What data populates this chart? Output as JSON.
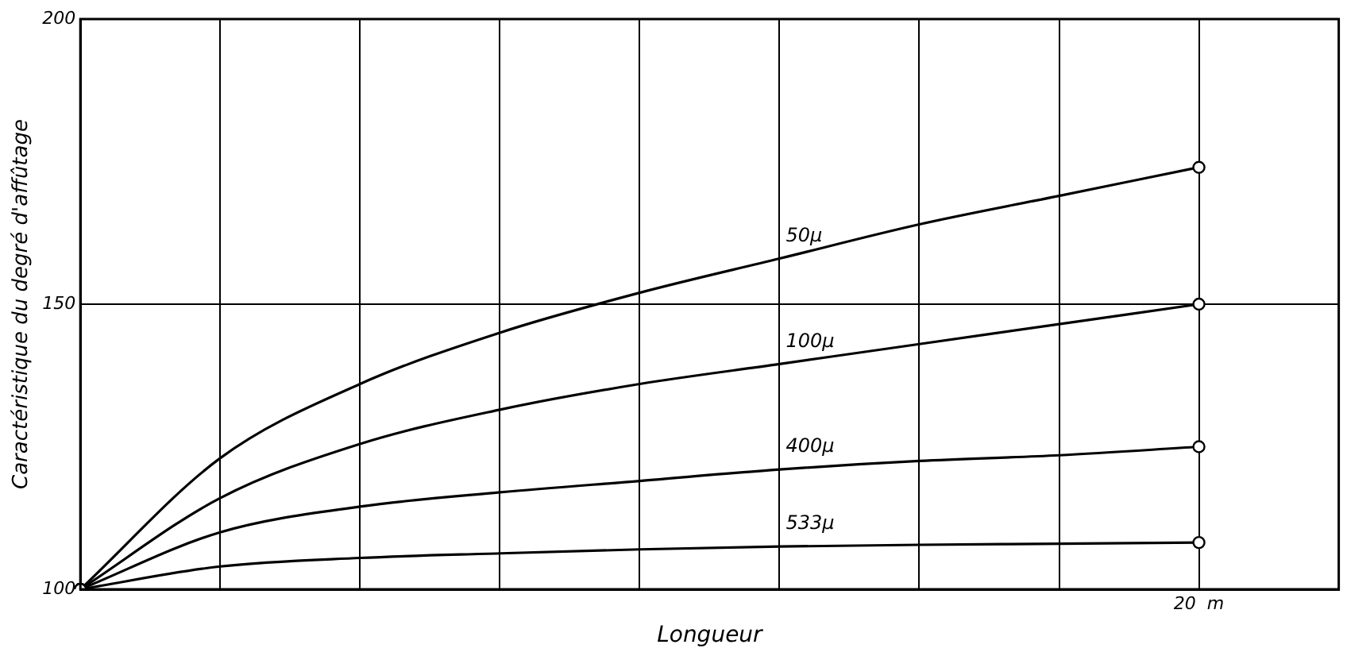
{
  "chart_data": {
    "type": "line",
    "xlabel": "Longueur",
    "ylabel": "Caractéristique du degré d'affûtage",
    "categories": [
      null,
      null,
      null,
      null,
      null,
      null,
      null,
      null,
      "20  m",
      null
    ],
    "series": [
      {
        "name": "50μ",
        "color": "#000000",
        "values": [
          100,
          123,
          136,
          145,
          152,
          158,
          164,
          169,
          174,
          null
        ]
      },
      {
        "name": "100μ",
        "color": "#000000",
        "values": [
          100,
          116,
          125.5,
          131.5,
          136,
          139.5,
          143,
          146.5,
          150,
          null
        ]
      },
      {
        "name": "400μ",
        "color": "#000000",
        "values": [
          100,
          110,
          114.5,
          117,
          119,
          121,
          122.5,
          123.5,
          125,
          null
        ]
      },
      {
        "name": "533μ",
        "color": "#000000",
        "values": [
          100,
          104,
          105.5,
          106.3,
          107,
          107.5,
          107.8,
          108,
          108.2,
          null
        ]
      }
    ],
    "ylim": [
      100,
      200
    ],
    "yticks": [
      100,
      150,
      200
    ],
    "grid": true,
    "legend": false,
    "line_style": "solid"
  }
}
